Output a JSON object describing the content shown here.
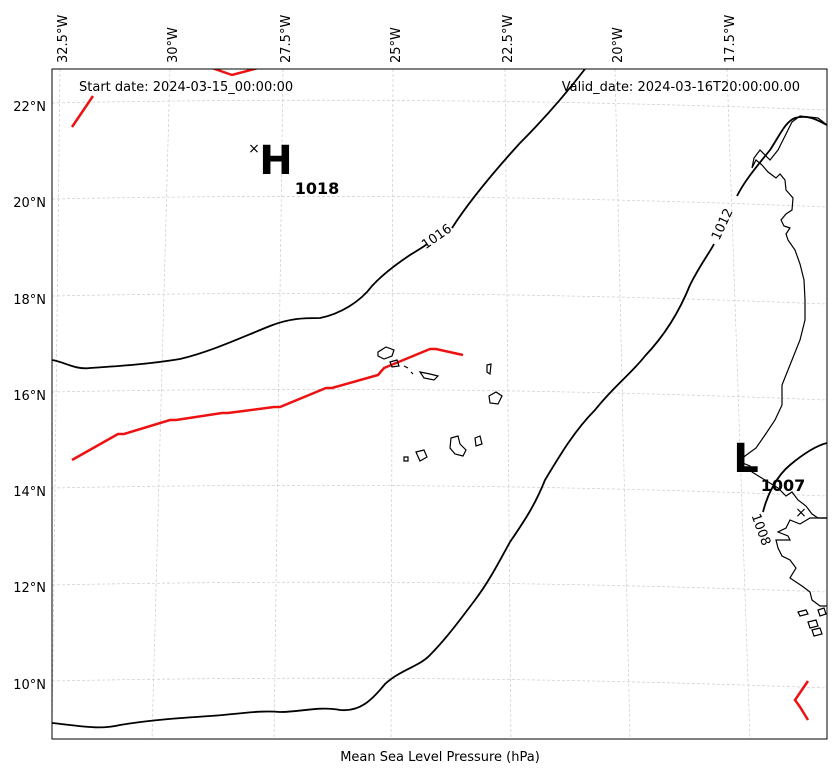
{
  "map": {
    "start_date": "Start date: 2024-03-15_00:00:00",
    "valid_date": "Valid_date: 2024-03-16T20:00:00.00",
    "xlabel": "Mean Sea Level Pressure (hPa)",
    "lon_ticks": [
      "32.5°W",
      "30°W",
      "27.5°W",
      "25°W",
      "22.5°W",
      "20°W",
      "17.5°W"
    ],
    "lat_ticks": [
      "22°N",
      "20°N",
      "18°N",
      "16°N",
      "14°N",
      "12°N",
      "10°N"
    ],
    "high": {
      "symbol": "H",
      "value": "1018"
    },
    "low": {
      "symbol": "L",
      "value": "1007"
    },
    "isobar_labels": [
      "1016",
      "1012",
      "1008"
    ],
    "colors": {
      "isobar": "#000000",
      "front": "#ee1111",
      "grid": "#cccccc",
      "coast": "#000000"
    }
  }
}
